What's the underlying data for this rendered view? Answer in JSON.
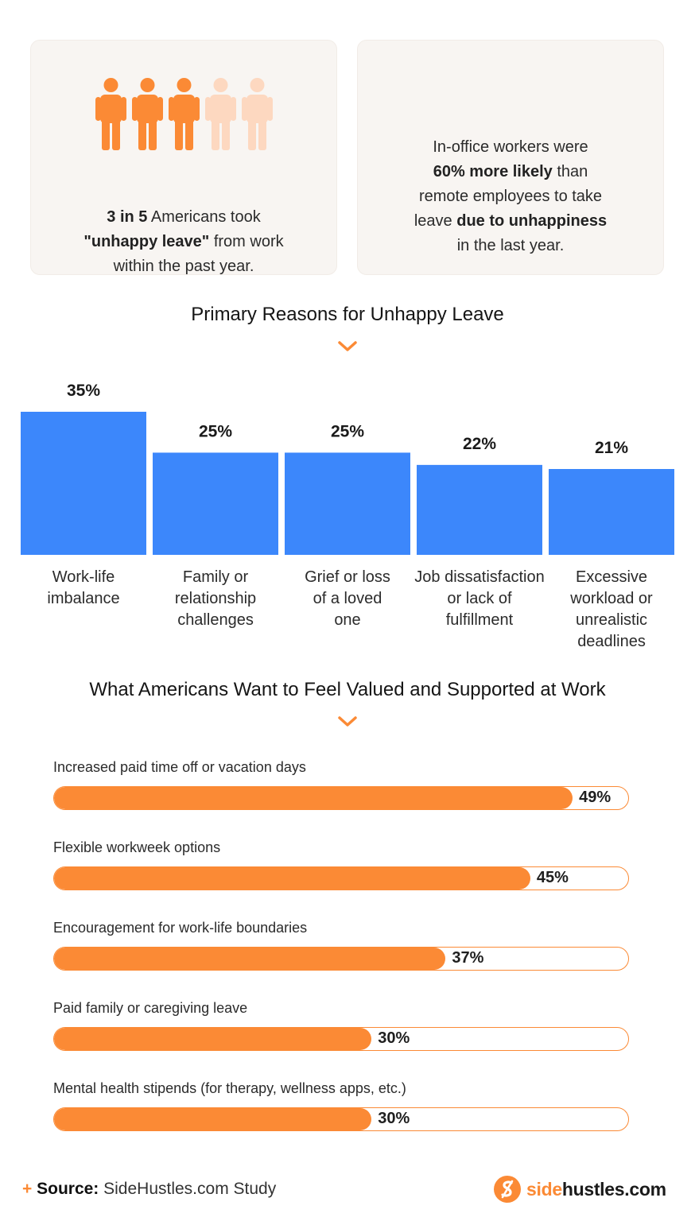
{
  "stat_left": {
    "people_total": 5,
    "people_highlighted": 3,
    "line1_bold": "3 in 5",
    "line1_rest": " Americans took",
    "line2_bold": "\"unhappy leave\"",
    "line2_rest": " from work",
    "line3": "within the past year."
  },
  "stat_right": {
    "line1": "In-office workers were",
    "line2_bold": "60% more likely",
    "line2_rest": " than",
    "line3": "remote employees to take",
    "line4_pre": "leave ",
    "line4_bold": "due to unhappiness",
    "line5": "in the last year."
  },
  "colors": {
    "bar_blue": "#3c87fb",
    "accent_orange": "#fb8a35",
    "person_light": "#fdd8c0",
    "card_bg": "#f8f5f2"
  },
  "icons": {
    "person": "person-icon",
    "chevron": "chevron-down-icon",
    "logo": "sidehustles-logo-icon"
  },
  "section_reasons_title": "Primary Reasons for Unhappy Leave",
  "section_wants_title": "What Americans Want to Feel Valued and Supported at Work",
  "chart_data": [
    {
      "type": "bar",
      "title": "Primary Reasons for Unhappy Leave",
      "categories": [
        [
          "Work-life",
          "imbalance"
        ],
        [
          "Family or",
          "relationship",
          "challenges"
        ],
        [
          "Grief or loss",
          "of a loved",
          "one"
        ],
        [
          "Job dissatisfaction",
          "or lack of",
          "fulfillment"
        ],
        [
          "Excessive",
          "workload or",
          "unrealistic",
          "deadlines"
        ]
      ],
      "values": [
        35,
        25,
        25,
        22,
        21
      ],
      "value_labels": [
        "35%",
        "25%",
        "25%",
        "22%",
        "21%"
      ],
      "unit": "%",
      "ylim": [
        0,
        35
      ],
      "grid": false,
      "color": "#3c87fb"
    },
    {
      "type": "bar",
      "orientation": "horizontal",
      "title": "What Americans Want to Feel Valued and Supported at Work",
      "categories": [
        "Increased paid time off or vacation days",
        "Flexible workweek options",
        "Encouragement for work-life boundaries",
        "Paid family or caregiving leave",
        "Mental health stipends (for therapy, wellness apps, etc.)"
      ],
      "values": [
        49,
        45,
        37,
        30,
        30
      ],
      "value_labels": [
        "49%",
        "45%",
        "37%",
        "30%",
        "30%"
      ],
      "unit": "%",
      "xlim": [
        0,
        54.4
      ],
      "grid": false,
      "color": "#fb8a35"
    }
  ],
  "footer": {
    "plus": "+",
    "source_label": "Source:",
    "source_text": " SideHustles.com Study",
    "logo_side": "side",
    "logo_rest": "hustles.com"
  }
}
